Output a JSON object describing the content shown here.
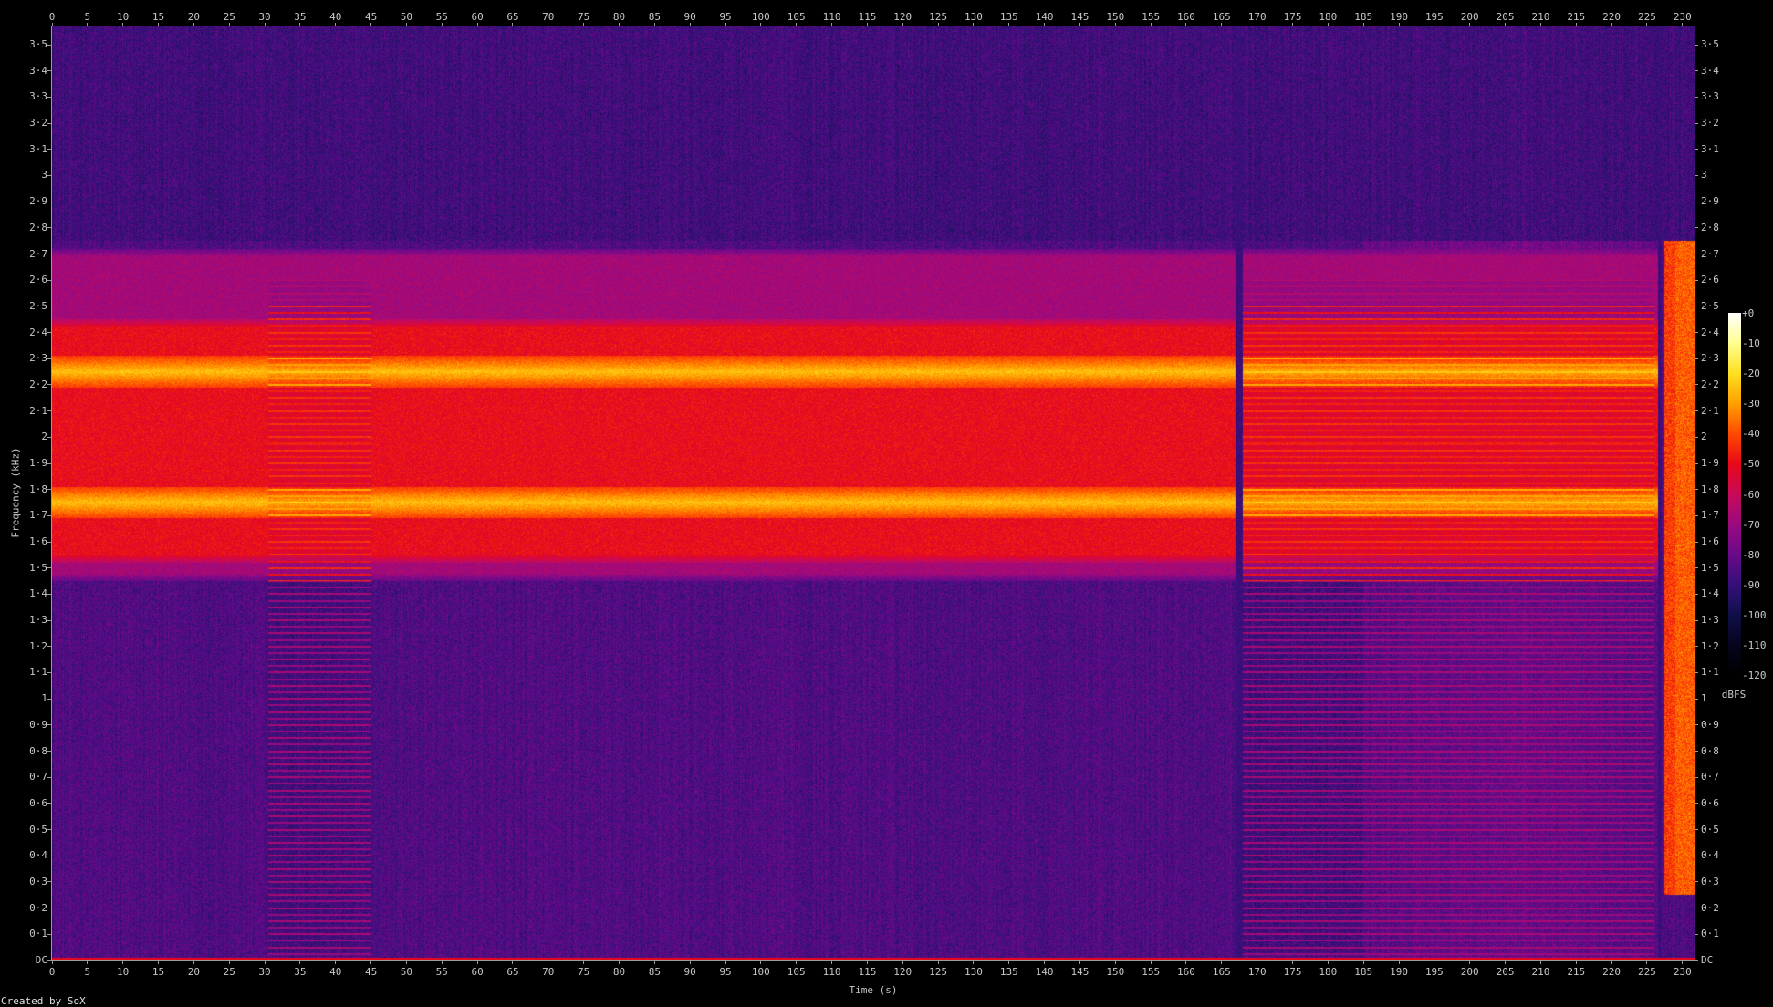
{
  "chart_data": {
    "type": "heatmap",
    "title": "",
    "xlabel": "Time (s)",
    "ylabel": "Frequency (kHz)",
    "xlim": [
      0,
      231.7
    ],
    "ylim": [
      0,
      3.57
    ],
    "x_ticks": [
      "0",
      "5",
      "10",
      "15",
      "20",
      "25",
      "30",
      "35",
      "40",
      "45",
      "50",
      "55",
      "60",
      "65",
      "70",
      "75",
      "80",
      "85",
      "90",
      "95",
      "100",
      "105",
      "110",
      "115",
      "120",
      "125",
      "130",
      "135",
      "140",
      "145",
      "150",
      "155",
      "160",
      "165",
      "170",
      "175",
      "180",
      "185",
      "190",
      "195",
      "200",
      "205",
      "210",
      "215",
      "220",
      "225",
      "230"
    ],
    "y_ticks": [
      "DC",
      "0·1",
      "0·2",
      "0·3",
      "0·4",
      "0·5",
      "0·6",
      "0·7",
      "0·8",
      "0·9",
      "1",
      "1·1",
      "1·2",
      "1·3",
      "1·4",
      "1·5",
      "1·6",
      "1·7",
      "1·8",
      "1·9",
      "2",
      "2·1",
      "2·2",
      "2·3",
      "2·4",
      "2·5",
      "2·6",
      "2·7",
      "2·8",
      "2·9",
      "3",
      "3·1",
      "3·2",
      "3·3",
      "3·4",
      "3·5"
    ],
    "colorbar": {
      "label": "dBFS",
      "range": [
        -120,
        0
      ],
      "ticks": [
        "+0",
        "-10",
        "-20",
        "-30",
        "-40",
        "-50",
        "-60",
        "-70",
        "-80",
        "-90",
        "-100",
        "-110",
        "-120"
      ],
      "colors": [
        "#ffffff",
        "#ffff90",
        "#ffe020",
        "#ffa000",
        "#ff4a00",
        "#e8081a",
        "#c80a5a",
        "#9a0a80",
        "#6a0a8a",
        "#35107a",
        "#10104a",
        "#05051e",
        "#000000"
      ]
    },
    "background_level_db": -85,
    "features": [
      {
        "kind": "tone",
        "freq_khz": 1.75,
        "t_start": 0,
        "t_end": 227,
        "level_db": -25
      },
      {
        "kind": "tone",
        "freq_khz": 2.25,
        "t_start": 0,
        "t_end": 227,
        "level_db": -25
      },
      {
        "kind": "band",
        "f_low_khz": 1.52,
        "f_high_khz": 2.45,
        "t_start": 0,
        "t_end": 227,
        "level_db": -50
      },
      {
        "kind": "band",
        "f_low_khz": 1.45,
        "f_high_khz": 2.72,
        "t_start": 0,
        "t_end": 227,
        "level_db": -68
      },
      {
        "kind": "harmonic-comb",
        "f_low_khz": 0.02,
        "f_high_khz": 2.6,
        "spacing_khz": 0.025,
        "t_start": 30.5,
        "t_end": 45,
        "level_db": -45
      },
      {
        "kind": "harmonic-comb",
        "f_low_khz": 0.02,
        "f_high_khz": 2.6,
        "spacing_khz": 0.025,
        "t_start": 168,
        "t_end": 226,
        "level_db": -45
      },
      {
        "kind": "dropout",
        "t_start": 167,
        "t_end": 168
      },
      {
        "kind": "dropout",
        "t_start": 226.5,
        "t_end": 227
      },
      {
        "kind": "broadband",
        "f_low_khz": 0.25,
        "f_high_khz": 2.75,
        "t_start": 227.5,
        "t_end": 231.7,
        "level_db": -42
      },
      {
        "kind": "dc",
        "freq_khz": 0,
        "level_db": -50
      }
    ]
  },
  "footer": "Created by SoX"
}
